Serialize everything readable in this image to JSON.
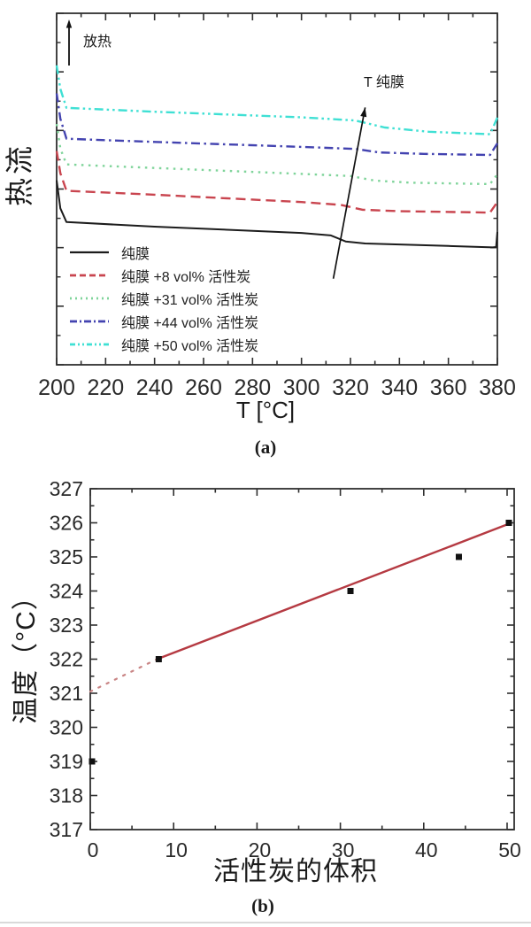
{
  "page": {
    "background": "#ffffff",
    "divider_color": "#d9d9d9"
  },
  "chart_data": [
    {
      "panel": "a",
      "type": "line",
      "panel_label": "(a)",
      "xlabel": "T [°C]",
      "ylabel": "热流",
      "x_range": [
        200,
        380
      ],
      "x_ticks": [
        200,
        220,
        240,
        260,
        280,
        300,
        320,
        340,
        360,
        380
      ],
      "x_minor_step": 10,
      "y_axis_note": "heat flow, arbitrary units, no tick labels; y values below are fraction of plot height from top",
      "y_major_tick_count": 7,
      "annotations": {
        "exo_label": "放热",
        "exo_arrow": {
          "x": 78,
          "y_from": 74,
          "y_to": 22
        },
        "arrow_label": "T 纯膜",
        "trend_arrow": {
          "from_T": 313,
          "from_y": 0.755,
          "to_T": 326,
          "to_y": 0.268
        }
      },
      "series": [
        {
          "name": "纯膜",
          "color": "#1c1c1c",
          "line_style": "solid",
          "width": 2,
          "points": [
            [
              200,
              0.475
            ],
            [
              201.5,
              0.555
            ],
            [
              204,
              0.594
            ],
            [
              240,
              0.607
            ],
            [
              300,
              0.625
            ],
            [
              312,
              0.632
            ],
            [
              318,
              0.649
            ],
            [
              326,
              0.655
            ],
            [
              360,
              0.662
            ],
            [
              378,
              0.666
            ],
            [
              379.5,
              0.665
            ],
            [
              380,
              0.622
            ]
          ]
        },
        {
          "name": "纯膜 +8 vol% 活性炭",
          "color": "#c9454f",
          "line_style": "dashed",
          "width": 2.4,
          "points": [
            [
              200,
              0.392
            ],
            [
              201.5,
              0.455
            ],
            [
              204,
              0.505
            ],
            [
              240,
              0.516
            ],
            [
              300,
              0.537
            ],
            [
              316,
              0.545
            ],
            [
              325,
              0.559
            ],
            [
              340,
              0.563
            ],
            [
              377,
              0.567
            ],
            [
              380,
              0.537
            ]
          ]
        },
        {
          "name": "纯膜 +31 vol% 活性炭",
          "color": "#7fd49a",
          "line_style": "dotted",
          "width": 2.4,
          "points": [
            [
              200,
              0.315
            ],
            [
              201.5,
              0.385
            ],
            [
              204,
              0.43
            ],
            [
              240,
              0.44
            ],
            [
              300,
              0.457
            ],
            [
              320,
              0.463
            ],
            [
              330,
              0.476
            ],
            [
              345,
              0.482
            ],
            [
              377,
              0.486
            ],
            [
              380,
              0.458
            ]
          ]
        },
        {
          "name": "纯膜 +44 vol% 活性炭",
          "color": "#4343b0",
          "line_style": "dash-dot",
          "width": 2.4,
          "points": [
            [
              200,
              0.228
            ],
            [
              201.5,
              0.3
            ],
            [
              204,
              0.357
            ],
            [
              240,
              0.366
            ],
            [
              300,
              0.38
            ],
            [
              322,
              0.386
            ],
            [
              332,
              0.396
            ],
            [
              350,
              0.4
            ],
            [
              377,
              0.403
            ],
            [
              380,
              0.37
            ]
          ]
        },
        {
          "name": "纯膜 +50 vol% 活性炭",
          "color": "#3fe0d4",
          "line_style": "dash-dot-dot",
          "width": 2.4,
          "points": [
            [
              200,
              0.148
            ],
            [
              201.5,
              0.215
            ],
            [
              204,
              0.269
            ],
            [
              240,
              0.28
            ],
            [
              300,
              0.296
            ],
            [
              322,
              0.305
            ],
            [
              334,
              0.325
            ],
            [
              352,
              0.337
            ],
            [
              377,
              0.344
            ],
            [
              380,
              0.297
            ]
          ]
        }
      ]
    },
    {
      "panel": "b",
      "type": "scatter",
      "panel_label": "(b)",
      "xlabel": "活性炭的体积",
      "ylabel": "温度（°C）",
      "x_range": [
        0,
        50
      ],
      "x_ticks": [
        0,
        10,
        20,
        30,
        40,
        50
      ],
      "x_minor_step": 5,
      "y_range": [
        317,
        327
      ],
      "y_ticks": [
        317,
        318,
        319,
        320,
        321,
        322,
        323,
        324,
        325,
        326,
        327
      ],
      "y_minor_step": 0.5,
      "points": [
        [
          0,
          319
        ],
        [
          8,
          322
        ],
        [
          31,
          324
        ],
        [
          44,
          325
        ],
        [
          50,
          326
        ]
      ],
      "marker": {
        "shape": "square",
        "color": "#111111",
        "size": 7
      },
      "fit": {
        "color": "#b53a42",
        "solid_segment": [
          [
            8,
            322
          ],
          [
            50,
            325.95
          ]
        ],
        "dotted_segment": [
          [
            0,
            321.05
          ],
          [
            8,
            322
          ]
        ],
        "dotted_color": "#c98585"
      }
    }
  ]
}
